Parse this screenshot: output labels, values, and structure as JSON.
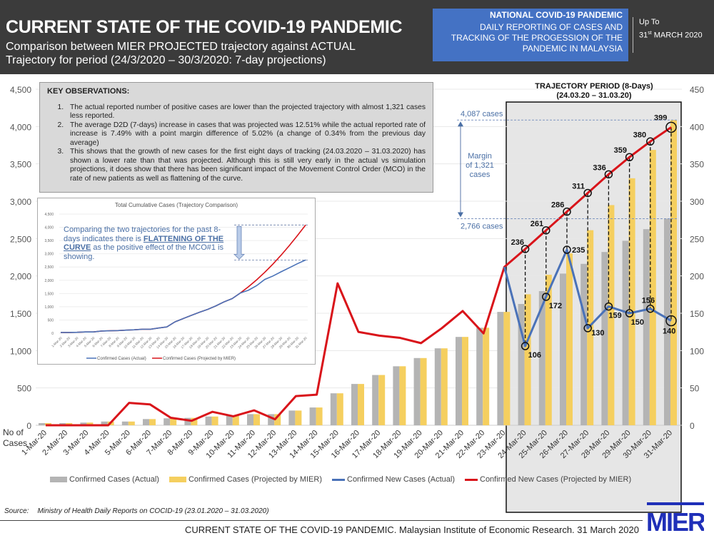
{
  "header": {
    "title": "CURRENT STATE OF THE COVID-19 PANDEMIC",
    "subtitle_line1": "Comparison between MIER PROJECTED trajectory against ACTUAL",
    "subtitle_line2": "Trajectory for period (24/3/2020 – 30/3/2020: 7-day projections)",
    "box_title": "NATIONAL COVID-19 PANDEMIC",
    "box_line1": "DAILY REPORTING OF CASES AND",
    "box_line2": "TRACKING OF THE PROGESSION OF THE",
    "box_line3": "PANDEMIC IN MALAYSIA",
    "box_color": "#4472c4",
    "upto_label": "Up To",
    "upto_day": "31",
    "upto_suffix": "st",
    "upto_rest": " MARCH 2020"
  },
  "observations": {
    "heading": "KEY OBSERVATIONS:",
    "items": [
      "The actual reported number of positive cases are lower than the projected trajectory with almost 1,321 cases less reported.",
      "The average D2D (7-days) increase in cases that was projected was 12.51% while the actual reported rate of increase is 7.49% with a point margin difference of 5.02% (a change of 0.34% from the previous day average)",
      "This shows that the growth of new cases for the first eight days of tracking (24.03.2020 – 31.03.2020) has shown a lower rate than that was projected. Although this is still very early in the actual vs simulation projections, it does show that there has been significant impact of the Movement Control Order (MCO) in the rate of new patients as well as flattening of the curve."
    ]
  },
  "annotations": {
    "trajectory_title": "TRAJECTORY PERIOD (8-Days)",
    "trajectory_dates": "(24.03.20 – 31.03.20)",
    "projected_total": "4,087 cases",
    "actual_total": "2,766 cases",
    "margin_line1": "Margin",
    "margin_line2": "of 1,321",
    "margin_line3": "cases",
    "y_axis_label_line1": "No of",
    "y_axis_label_line2": "Cases",
    "inset_note_pre": "Comparing the two trajectories for the past 8-days indicates there is ",
    "inset_note_bold": "FLATTENING OF THE CURVE",
    "inset_note_post": " as the positive effect of the MCO#1 is showing."
  },
  "chart_data": [
    {
      "type": "bar+line",
      "title": "",
      "categories": [
        "1-Mar-20",
        "2-Mar-20",
        "3-Mar-20",
        "4-Mar-20",
        "5-Mar-20",
        "6-Mar-20",
        "7-Mar-20",
        "8-Mar-20",
        "9-Mar-20",
        "10-Mar-20",
        "11-Mar-20",
        "12-Mar-20",
        "13-Mar-20",
        "14-Mar-20",
        "15-Mar-20",
        "16-Mar-20",
        "17-Mar-20",
        "18-Mar-20",
        "19-Mar-20",
        "20-Mar-20",
        "21-Mar-20",
        "22-Mar-20",
        "23-Mar-20",
        "24-Mar-20",
        "25-Mar-20",
        "26-Mar-20",
        "27-Mar-20",
        "28-Mar-20",
        "29-Mar-20",
        "30-Mar-20",
        "31-Mar-20"
      ],
      "ylim_left": [
        0,
        4500
      ],
      "yticks_left": [
        "0",
        "500",
        "1,000",
        "1,500",
        "2,000",
        "2,500",
        "3,000",
        "3,500",
        "4,000",
        "4,500"
      ],
      "ylim_right": [
        0,
        450
      ],
      "yticks_right": [
        "0",
        "50",
        "100",
        "150",
        "200",
        "250",
        "300",
        "350",
        "400",
        "450"
      ],
      "grid": true,
      "legend_position": "bottom",
      "series": [
        {
          "name": "Confirmed Cases (Actual)",
          "type": "bar",
          "axis": "left",
          "color": "#b4b4b4",
          "values": [
            29,
            29,
            36,
            50,
            50,
            83,
            93,
            99,
            117,
            129,
            149,
            149,
            197,
            238,
            428,
            553,
            673,
            790,
            900,
            1030,
            1183,
            1306,
            1518,
            1624,
            1796,
            2031,
            2161,
            2320,
            2470,
            2626,
            2766
          ]
        },
        {
          "name": "Confirmed Cases (Projected by MIER)",
          "type": "bar",
          "axis": "left",
          "color": "#f5cf5f",
          "values": [
            29,
            29,
            36,
            50,
            50,
            83,
            93,
            99,
            117,
            129,
            149,
            149,
            197,
            238,
            428,
            553,
            673,
            790,
            900,
            1030,
            1183,
            1306,
            1518,
            1754,
            2015,
            2301,
            2612,
            2948,
            3307,
            3687,
            4087
          ]
        },
        {
          "name": "Confirmed New Cases (Actual)",
          "type": "line",
          "axis": "right",
          "color": "#4a72b8",
          "values": [
            null,
            null,
            null,
            null,
            null,
            null,
            null,
            null,
            null,
            null,
            null,
            null,
            null,
            null,
            null,
            null,
            null,
            null,
            null,
            null,
            null,
            null,
            212,
            106,
            172,
            235,
            130,
            159,
            150,
            156,
            140
          ]
        },
        {
          "name": "Confirmed New Cases (Projected by MIER)",
          "type": "line",
          "axis": "right",
          "color": "#d9141a",
          "values": [
            0,
            0,
            0,
            0,
            30,
            28,
            10,
            6,
            18,
            12,
            20,
            8,
            39,
            41,
            190,
            125,
            120,
            117,
            110,
            130,
            153,
            123,
            212,
            236,
            261,
            286,
            311,
            336,
            359,
            380,
            399
          ]
        }
      ],
      "data_labels": {
        "projected_new": [
          "236",
          "261",
          "286",
          "311",
          "336",
          "359",
          "380",
          "399"
        ],
        "actual_new": [
          "106",
          "172",
          "235",
          "130",
          "159",
          "150",
          "156",
          "140"
        ]
      }
    },
    {
      "type": "line",
      "title": "Total Cumulative Cases (Trajectory Comparison)",
      "categories": [
        "1-Mar-20",
        "2-Mar-20",
        "3-Mar-20",
        "4-Mar-20",
        "5-Mar-20",
        "6-Mar-20",
        "7-Mar-20",
        "8-Mar-20",
        "9-Mar-20",
        "10-Mar-20",
        "11-Mar-20",
        "12-Mar-20",
        "13-Mar-20",
        "14-Mar-20",
        "15-Mar-20",
        "16-Mar-20",
        "17-Mar-20",
        "18-Mar-20",
        "19-Mar-20",
        "20-Mar-20",
        "21-Mar-20",
        "22-Mar-20",
        "23-Mar-20",
        "24-Mar-20",
        "25-Mar-20",
        "26-Mar-20",
        "27-Mar-20",
        "28-Mar-20",
        "29-Mar-20",
        "30-Mar-20",
        "31-Mar-20"
      ],
      "ylim": [
        0,
        4500
      ],
      "yticks": [
        "0",
        "500",
        "1,000",
        "1,500",
        "2,000",
        "2,500",
        "3,000",
        "3,500",
        "4,000",
        "4,500"
      ],
      "legend_position": "bottom",
      "series": [
        {
          "name": "Confirmed Cases (Actual)",
          "color": "#4a72b8",
          "values": [
            29,
            29,
            36,
            50,
            50,
            83,
            93,
            99,
            117,
            129,
            149,
            149,
            197,
            238,
            428,
            553,
            673,
            790,
            900,
            1030,
            1183,
            1306,
            1518,
            1624,
            1796,
            2031,
            2161,
            2320,
            2470,
            2626,
            2766
          ]
        },
        {
          "name": "Confirmed Cases (Projected by MIER)",
          "color": "#d9141a",
          "values": [
            29,
            29,
            36,
            50,
            50,
            83,
            93,
            99,
            117,
            129,
            149,
            149,
            197,
            238,
            428,
            553,
            673,
            790,
            900,
            1030,
            1183,
            1306,
            1518,
            1754,
            2015,
            2301,
            2612,
            2948,
            3307,
            3687,
            4087
          ]
        }
      ]
    }
  ],
  "legend": [
    {
      "label": "Confirmed Cases (Actual)",
      "kind": "box",
      "color": "#b4b4b4"
    },
    {
      "label": "Confirmed Cases (Projected by MIER)",
      "kind": "box",
      "color": "#f5cf5f"
    },
    {
      "label": "Confirmed New Cases (Actual)",
      "kind": "line",
      "color": "#4a72b8"
    },
    {
      "label": "Confirmed New Cases (Projected by MIER)",
      "kind": "line",
      "color": "#d9141a"
    }
  ],
  "source": {
    "label": "Source:",
    "text": "Ministry of Health Daily Reports on COCID-19 (23.01.2020 – 31.03.2020)"
  },
  "footer": {
    "text": "CURRENT STATE OF THE COVID-19 PANDEMIC. Malaysian Institute of Economic Research. 31 March 2020",
    "logo_text": "MIER"
  }
}
